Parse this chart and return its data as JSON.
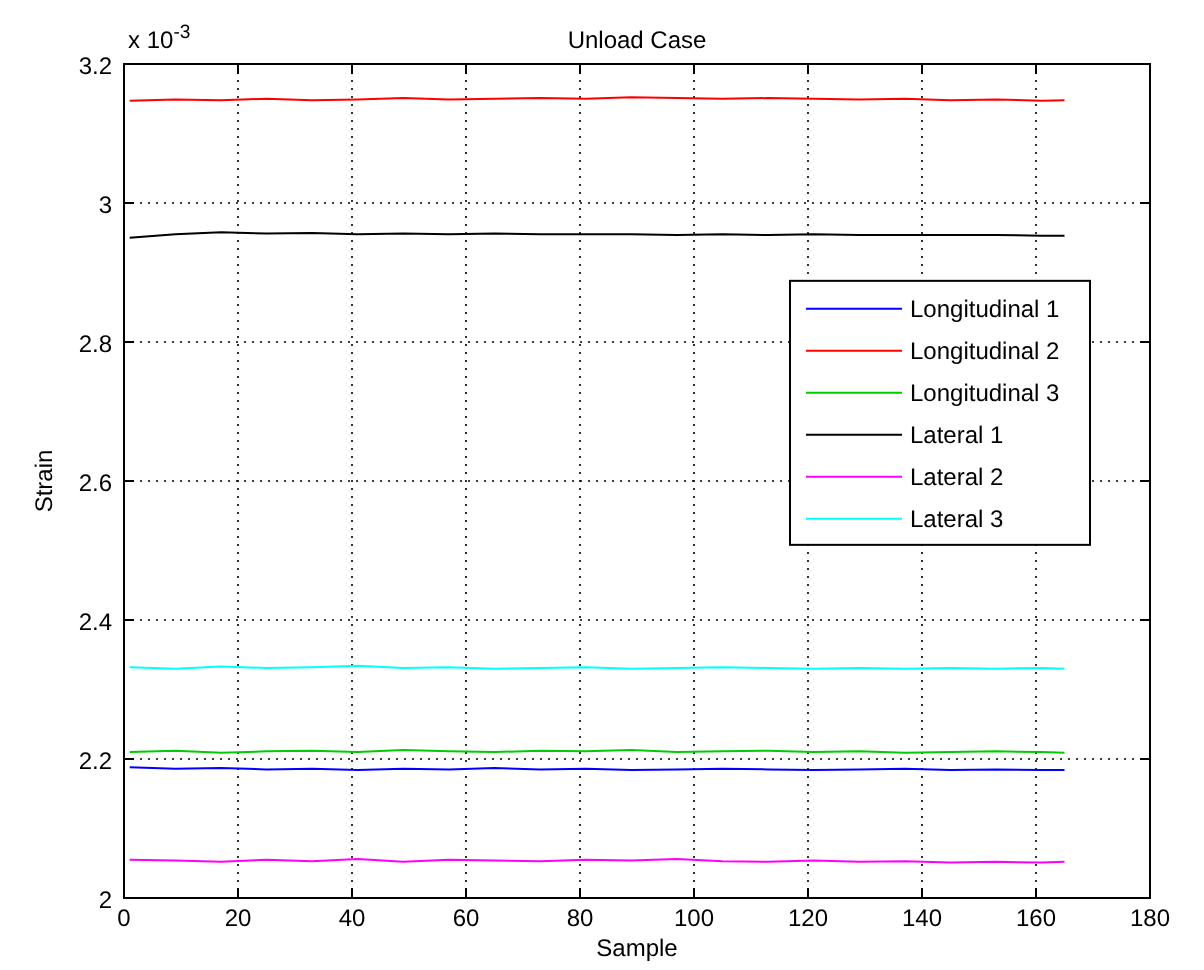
{
  "chart_data": {
    "type": "line",
    "title": "Unload Case",
    "xlabel": "Sample",
    "ylabel": "Strain",
    "annotations": [
      "x 10$^{-3}$"
    ],
    "x": [
      1,
      9,
      17,
      25,
      33,
      41,
      49,
      57,
      65,
      73,
      81,
      89,
      97,
      105,
      113,
      121,
      129,
      137,
      145,
      153,
      161,
      165
    ],
    "series": [
      {
        "name": "Longitudinal 1",
        "color": "#0000ff",
        "values": [
          2.188,
          2.186,
          2.187,
          2.185,
          2.186,
          2.184,
          2.186,
          2.185,
          2.187,
          2.185,
          2.186,
          2.184,
          2.185,
          2.186,
          2.185,
          2.184,
          2.185,
          2.186,
          2.184,
          2.185,
          2.184,
          2.184
        ]
      },
      {
        "name": "Longitudinal 2",
        "color": "#ff0000",
        "values": [
          3.147,
          3.149,
          3.148,
          3.15,
          3.148,
          3.149,
          3.151,
          3.149,
          3.15,
          3.151,
          3.15,
          3.152,
          3.151,
          3.15,
          3.151,
          3.15,
          3.149,
          3.15,
          3.148,
          3.149,
          3.147,
          3.148
        ]
      },
      {
        "name": "Longitudinal 3",
        "color": "#00cc00",
        "values": [
          2.21,
          2.212,
          2.209,
          2.211,
          2.212,
          2.21,
          2.213,
          2.211,
          2.21,
          2.212,
          2.211,
          2.213,
          2.21,
          2.211,
          2.212,
          2.21,
          2.211,
          2.209,
          2.21,
          2.211,
          2.21,
          2.209
        ]
      },
      {
        "name": "Lateral 1",
        "color": "#000000",
        "values": [
          2.95,
          2.955,
          2.958,
          2.956,
          2.957,
          2.955,
          2.956,
          2.955,
          2.956,
          2.955,
          2.955,
          2.955,
          2.954,
          2.955,
          2.954,
          2.955,
          2.954,
          2.954,
          2.954,
          2.954,
          2.953,
          2.953
        ]
      },
      {
        "name": "Lateral 2",
        "color": "#ff00ff",
        "values": [
          2.055,
          2.054,
          2.052,
          2.055,
          2.053,
          2.056,
          2.052,
          2.055,
          2.054,
          2.053,
          2.055,
          2.054,
          2.056,
          2.053,
          2.052,
          2.054,
          2.052,
          2.053,
          2.051,
          2.052,
          2.051,
          2.052
        ]
      },
      {
        "name": "Lateral 3",
        "color": "#00ffff",
        "values": [
          2.332,
          2.33,
          2.333,
          2.331,
          2.332,
          2.334,
          2.331,
          2.332,
          2.33,
          2.331,
          2.332,
          2.33,
          2.331,
          2.332,
          2.331,
          2.33,
          2.331,
          2.33,
          2.331,
          2.33,
          2.331,
          2.33
        ]
      }
    ],
    "xlim": [
      0,
      180
    ],
    "xticks": [
      0,
      20,
      40,
      60,
      80,
      100,
      120,
      140,
      160,
      180
    ],
    "ylim": [
      2,
      3.2
    ],
    "yticks": [
      2,
      2.2,
      2.4,
      2.6,
      2.8,
      3,
      3.2
    ],
    "grid": true,
    "legend": "right",
    "line_style": "solid",
    "marker": "none"
  }
}
